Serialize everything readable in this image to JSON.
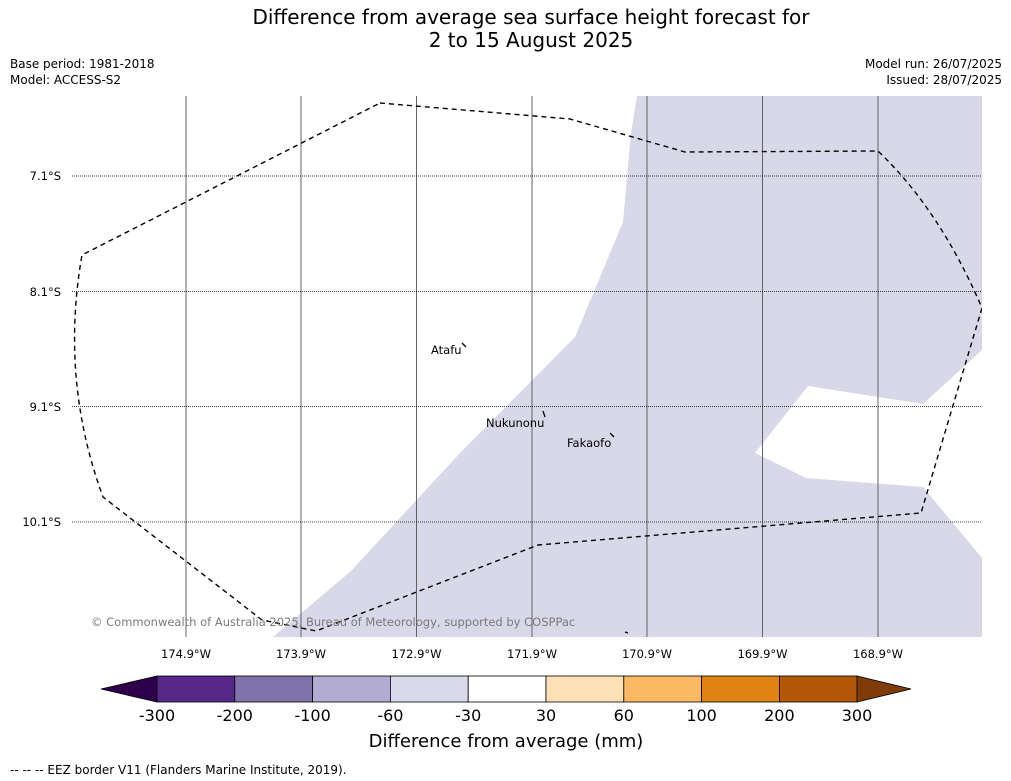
{
  "title": {
    "line1": "Difference from average sea surface height forecast for",
    "line2": "2 to 15 August 2025"
  },
  "meta": {
    "base_period": "Base period: 1981-2018",
    "model": "Model: ACCESS-S2",
    "model_run": "Model run: 26/07/2025",
    "issued": "Issued: 28/07/2025"
  },
  "map": {
    "latitude_labels": [
      "7.1°S",
      "8.1°S",
      "9.1°S",
      "10.1°S"
    ],
    "longitude_labels": [
      "174.9°W",
      "173.9°W",
      "172.9°W",
      "171.9°W",
      "170.9°W",
      "169.9°W",
      "168.9°W"
    ],
    "places": [
      {
        "name": "Atafu"
      },
      {
        "name": "Nukunonu"
      },
      {
        "name": "Fakaofo"
      }
    ],
    "anomaly_fill_color": "#d8d8e8",
    "copyright": "© Commonwealth of Australia 2025, Bureau of Meteorology, supported by COSPPac"
  },
  "colorbar": {
    "colors": [
      "#2d004b",
      "#542788",
      "#8073ac",
      "#b2abd2",
      "#d8daeb",
      "#ffffff",
      "#fee0b6",
      "#fdb863",
      "#e08214",
      "#b35806",
      "#7f3b08"
    ],
    "ticks": [
      "-300",
      "-200",
      "-100",
      "-60",
      "-30",
      "30",
      "60",
      "100",
      "200",
      "300"
    ],
    "label": "Difference from average (mm)"
  },
  "footnote": "--  --  -- EEZ border V11 (Flanders Marine Institute, 2019)."
}
